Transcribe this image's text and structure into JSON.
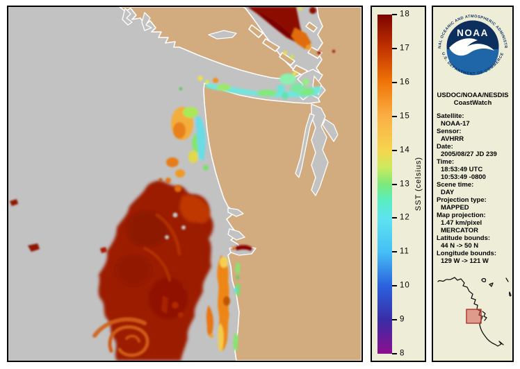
{
  "colors": {
    "panel_bg": "#eeeed8",
    "land": "#d2ab7e",
    "no_data_gray": "#c2c2c2",
    "coastline": "#ffffff",
    "minimap_highlight_fill": "#cd463c",
    "minimap_highlight_stroke": "#b03c34"
  },
  "colorbar": {
    "label": "SST (celsius)",
    "min": 8,
    "max": 18,
    "ticks": [
      18,
      17,
      16,
      15,
      14,
      13,
      12,
      11,
      10,
      9,
      8
    ],
    "stops": [
      {
        "v": 18,
        "c": "#7c0400"
      },
      {
        "v": 17,
        "c": "#c23300"
      },
      {
        "v": 16,
        "c": "#f07508"
      },
      {
        "v": 15,
        "c": "#fbaf45"
      },
      {
        "v": 14,
        "c": "#f5d54e"
      },
      {
        "v": 13.5,
        "c": "#cdea5e"
      },
      {
        "v": 13,
        "c": "#7de97a"
      },
      {
        "v": 12.5,
        "c": "#58eec4"
      },
      {
        "v": 12,
        "c": "#5fe3ef"
      },
      {
        "v": 11,
        "c": "#45bff5"
      },
      {
        "v": 10,
        "c": "#2a61de"
      },
      {
        "v": 9,
        "c": "#392da6"
      },
      {
        "v": 8,
        "c": "#8d0e8d"
      }
    ]
  },
  "logo": {
    "ring_top": "NATIONAL OCEANIC AND ATMOSPHERIC ADMINISTRATION",
    "ring_bottom": "U.S. DEPARTMENT OF COMMERCE",
    "center_text": "NOAA"
  },
  "info": {
    "header1": "USDOC/NOAA/NESDIS",
    "header2": "CoastWatch",
    "items": [
      {
        "label": "Satellite:",
        "values": [
          "NOAA-17"
        ]
      },
      {
        "label": "Sensor:",
        "values": [
          "AVHRR"
        ]
      },
      {
        "label": "Date:",
        "values": [
          "2005/08/27 JD 239"
        ]
      },
      {
        "label": "Time:",
        "values": [
          "18:53:49 UTC",
          "10:53:49 -0800"
        ]
      },
      {
        "label": "Scene time:",
        "values": [
          "DAY"
        ]
      },
      {
        "label": "Projection type:",
        "values": [
          "MAPPED"
        ]
      },
      {
        "label": "Map projection:",
        "values": [
          "1.47 km/pixel",
          "MERCATOR"
        ]
      },
      {
        "label": "Latitude bounds:",
        "values": [
          "44 N -> 50 N"
        ]
      },
      {
        "label": "Longitude bounds:",
        "values": [
          "129 W -> 121 W"
        ]
      }
    ]
  },
  "map": {
    "description": "AVHRR sea-surface temperature scene of the Pacific Northwest (Vancouver Island, Strait of Juan de Fuca, Puget Sound, Washington/Oregon coast); gray = no data / cloud, tan = land"
  }
}
